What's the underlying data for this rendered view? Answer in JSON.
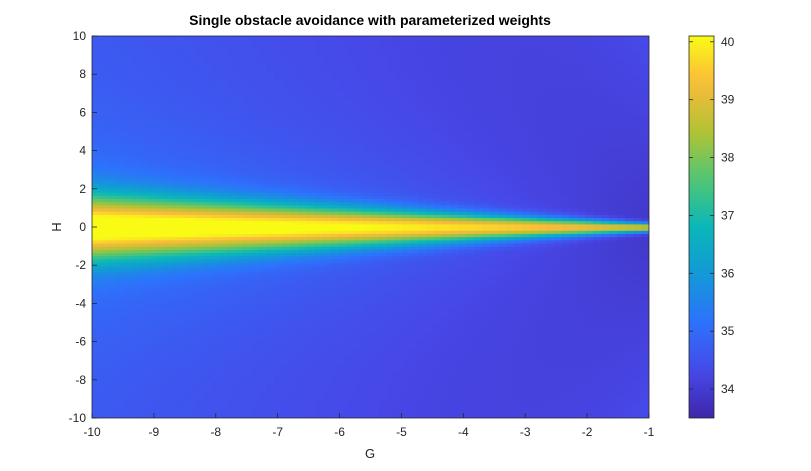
{
  "chart_data": {
    "type": "heatmap",
    "title": "Single obstacle avoidance with parameterized weights",
    "xlabel": "G",
    "ylabel": "H",
    "xlim": [
      -10,
      -1
    ],
    "ylim": [
      -10,
      10
    ],
    "x_ticks": [
      -10,
      -9,
      -8,
      -7,
      -6,
      -5,
      -4,
      -3,
      -2,
      -1
    ],
    "y_ticks": [
      -10,
      -8,
      -6,
      -4,
      -2,
      0,
      2,
      4,
      6,
      8,
      10
    ],
    "colorbar": {
      "range": [
        33.5,
        40.1
      ],
      "ticks": [
        34,
        35,
        36,
        37,
        38,
        39,
        40
      ],
      "colormap": "parula",
      "placement": "right"
    },
    "grid": false,
    "surface_samples": [
      {
        "G": -10,
        "H": 0,
        "value": 39.5
      },
      {
        "G": -10,
        "H": 2,
        "value": 37.2
      },
      {
        "G": -10,
        "H": 4,
        "value": 36.0
      },
      {
        "G": -10,
        "H": 6,
        "value": 35.2
      },
      {
        "G": -10,
        "H": 10,
        "value": 34.5
      },
      {
        "G": -6,
        "H": 0,
        "value": 39.4
      },
      {
        "G": -6,
        "H": 2,
        "value": 36.5
      },
      {
        "G": -6,
        "H": 6,
        "value": 34.8
      },
      {
        "G": -3,
        "H": 0,
        "value": 39.0
      },
      {
        "G": -3,
        "H": 2,
        "value": 35.5
      },
      {
        "G": -3,
        "H": 6,
        "value": 34.0
      },
      {
        "G": -1,
        "H": 0,
        "value": 37.5
      },
      {
        "G": -1,
        "H": 4,
        "value": 34.0
      },
      {
        "G": -1,
        "H": 10,
        "value": 34.3
      }
    ]
  }
}
